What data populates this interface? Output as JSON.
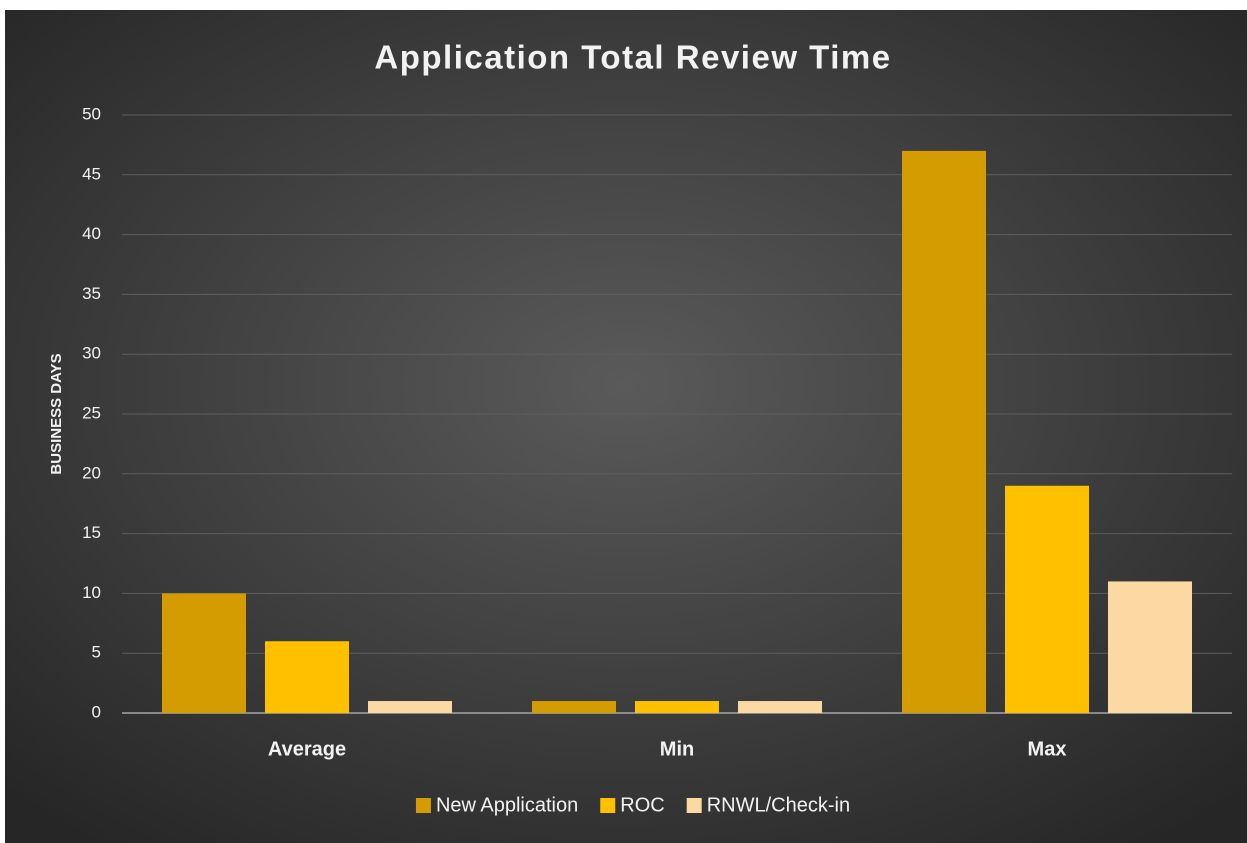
{
  "chart_data": {
    "type": "bar",
    "title": "Application Total Review Time",
    "y_label": "BUSINESS DAYS",
    "categories": [
      "Average",
      "Min",
      "Max"
    ],
    "series": [
      {
        "name": "New Application",
        "color": "#d49c00",
        "values": [
          10,
          1,
          47
        ]
      },
      {
        "name": "ROC",
        "color": "#ffc000",
        "values": [
          6,
          1,
          19
        ]
      },
      {
        "name": "RNWL/Check-in",
        "color": "#fcd9a2",
        "values": [
          1,
          1,
          11
        ]
      }
    ],
    "ylim": [
      0,
      50
    ],
    "yticks": [
      0,
      5,
      10,
      15,
      20,
      25,
      30,
      35,
      40,
      45,
      50
    ],
    "grid": true,
    "legend": "bottom"
  }
}
